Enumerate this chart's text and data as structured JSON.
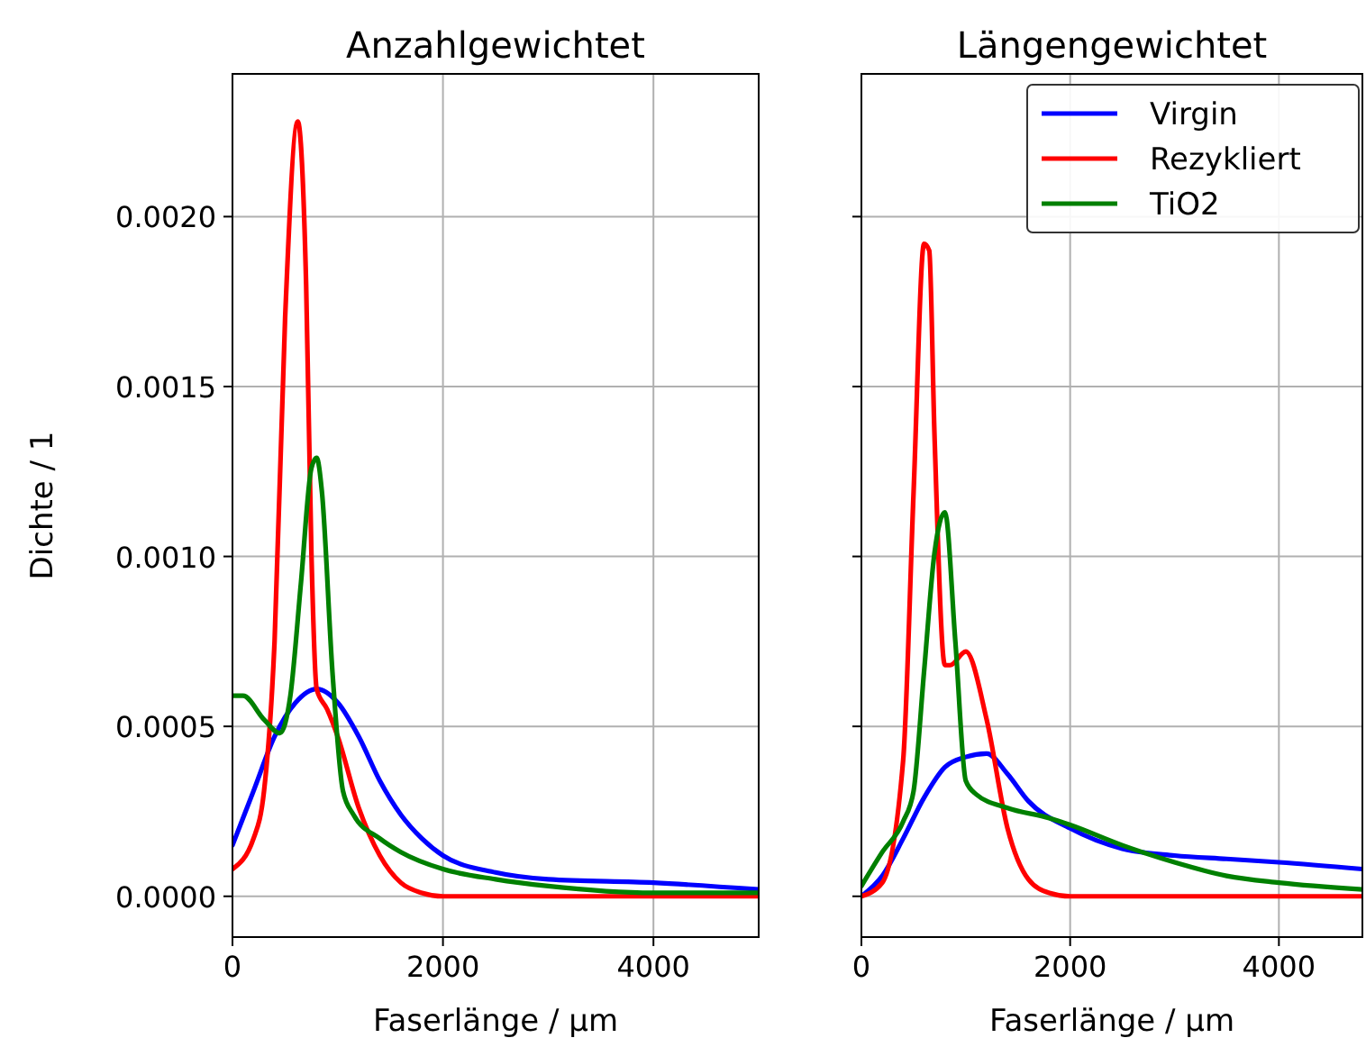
{
  "chart_data": [
    {
      "type": "line",
      "title": "Anzahlgewichtet",
      "xlabel": "Faserlänge / µm",
      "ylabel": "Dichte / 1",
      "xlim": [
        0,
        5000
      ],
      "xticks": [
        0,
        2000,
        4000
      ],
      "ylim": [
        -0.00012,
        0.00242
      ],
      "yticks": [
        {
          "value": 0,
          "label": "0.0000"
        },
        {
          "value": 0.0005,
          "label": "0.0005"
        },
        {
          "value": 0.001,
          "label": "0.0010"
        },
        {
          "value": 0.0015,
          "label": "0.0015"
        },
        {
          "value": 0.002,
          "label": "0.0020"
        }
      ],
      "grid": true,
      "legend": false,
      "series": [
        {
          "color": "#0000ff",
          "x": [
            0,
            200,
            400,
            600,
            800,
            1000,
            1200,
            1400,
            1600,
            1800,
            2000,
            2500,
            3000,
            4000,
            5000
          ],
          "values": [
            0.00015,
            0.00031,
            0.00047,
            0.00057,
            0.00061,
            0.00057,
            0.00047,
            0.00034,
            0.00024,
            0.00017,
            0.00012,
            7e-05,
            5e-05,
            4e-05,
            2e-05
          ]
        },
        {
          "color": "#ff0000",
          "x": [
            0,
            200,
            300,
            400,
            500,
            620,
            700,
            750,
            800,
            900,
            1000,
            1200,
            1400,
            1600,
            1800,
            2000,
            5000
          ],
          "values": [
            8e-05,
            0.00017,
            0.00031,
            0.00075,
            0.0017,
            0.00228,
            0.0018,
            0.00101,
            0.00061,
            0.00055,
            0.00047,
            0.00026,
            0.00012,
            4e-05,
            1e-05,
            0,
            0
          ]
        },
        {
          "color": "#008000",
          "x": [
            0,
            100,
            300,
            450,
            550,
            650,
            750,
            800,
            850,
            950,
            1050,
            1150,
            1400,
            1600,
            2000,
            2500,
            3000,
            4000,
            5000
          ],
          "values": [
            0.00059,
            0.00059,
            0.00052,
            0.00048,
            0.00059,
            0.00092,
            0.00126,
            0.00129,
            0.00119,
            0.00066,
            0.00031,
            0.00024,
            0.00017,
            0.00013,
            8e-05,
            5e-05,
            3e-05,
            1e-05,
            1e-05
          ]
        }
      ]
    },
    {
      "type": "line",
      "title": "Längengewichtet",
      "xlabel": "Faserlänge / µm",
      "xlim": [
        0,
        4800
      ],
      "xticks": [
        0,
        2000,
        4000
      ],
      "ylim": [
        -0.00012,
        0.00242
      ],
      "yticks": [
        0,
        0.0005,
        0.001,
        0.0015,
        0.002
      ],
      "tick_labels": "x",
      "grid": true,
      "legend": "top right",
      "series": [
        {
          "name": "Virgin",
          "color": "#0000ff",
          "x": [
            0,
            200,
            400,
            600,
            800,
            1000,
            1200,
            1400,
            1600,
            2000,
            2500,
            3000,
            3500,
            4000,
            4800
          ],
          "values": [
            0,
            6e-05,
            0.00017,
            0.00029,
            0.00038,
            0.00041,
            0.00042,
            0.00036,
            0.00028,
            0.0002,
            0.00014,
            0.00012,
            0.00011,
            0.0001,
            8e-05
          ]
        },
        {
          "name": "Rezykliert",
          "color": "#ff0000",
          "x": [
            0,
            200,
            400,
            500,
            600,
            650,
            700,
            800,
            850,
            1000,
            1200,
            1400,
            1600,
            1800,
            2000,
            4800
          ],
          "values": [
            0,
            4e-05,
            0.0004,
            0.00119,
            0.00192,
            0.0019,
            0.00136,
            0.00068,
            0.00068,
            0.00072,
            0.00052,
            0.0002,
            5e-05,
            1e-05,
            0,
            0
          ]
        },
        {
          "name": "TiO2",
          "color": "#008000",
          "x": [
            0,
            200,
            400,
            500,
            600,
            700,
            800,
            900,
            1000,
            1100,
            1400,
            1800,
            2000,
            2500,
            3000,
            3500,
            4000,
            4800
          ],
          "values": [
            3e-05,
            0.00013,
            0.00022,
            0.00031,
            0.00066,
            0.00101,
            0.00113,
            0.00075,
            0.00034,
            0.0003,
            0.00026,
            0.00023,
            0.00021,
            0.00015,
            0.0001,
            6e-05,
            4e-05,
            2e-05
          ]
        }
      ]
    }
  ]
}
